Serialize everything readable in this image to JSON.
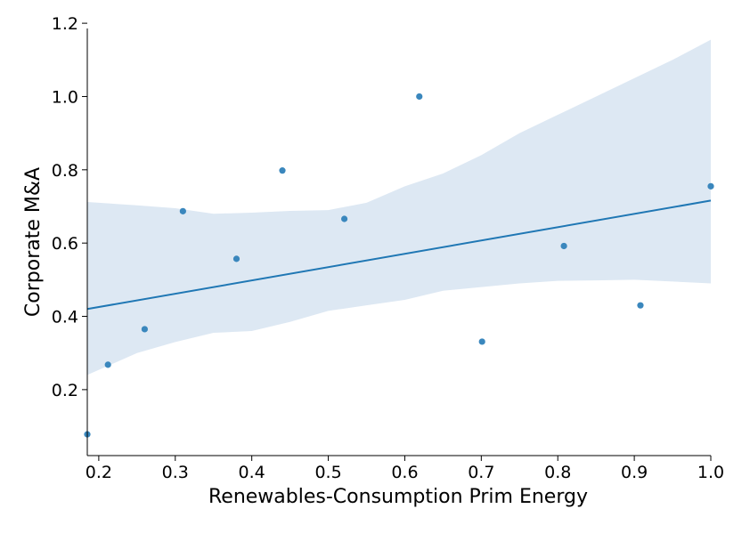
{
  "chart_data": {
    "type": "scatter",
    "title": "",
    "xlabel": "Renewables-Consumption Prim Energy",
    "ylabel": "Corporate M&A",
    "xlim": [
      0.185,
      1.0
    ],
    "ylim": [
      0.02,
      1.21
    ],
    "xticks": [
      0.2,
      0.3,
      0.4,
      0.5,
      0.6,
      0.7,
      0.8,
      0.9,
      1.0
    ],
    "xtick_labels": [
      "0.2",
      "0.3",
      "0.4",
      "0.5",
      "0.6",
      "0.7",
      "0.8",
      "0.9",
      "1.0"
    ],
    "yticks": [
      0.2,
      0.4,
      0.6,
      0.8,
      1.0,
      1.2
    ],
    "ytick_labels": [
      "0.2",
      "0.4",
      "0.6",
      "0.8",
      "1.0",
      "1.2"
    ],
    "grid": false,
    "points": [
      {
        "x": 0.185,
        "y": 0.078
      },
      {
        "x": 0.212,
        "y": 0.268
      },
      {
        "x": 0.26,
        "y": 0.365
      },
      {
        "x": 0.31,
        "y": 0.687
      },
      {
        "x": 0.38,
        "y": 0.557
      },
      {
        "x": 0.44,
        "y": 0.798
      },
      {
        "x": 0.521,
        "y": 0.666
      },
      {
        "x": 0.619,
        "y": 1.0
      },
      {
        "x": 0.701,
        "y": 0.331
      },
      {
        "x": 0.808,
        "y": 0.592
      },
      {
        "x": 0.908,
        "y": 0.43
      },
      {
        "x": 1.0,
        "y": 0.755
      }
    ],
    "regression_line": [
      {
        "x": 0.185,
        "y": 0.42
      },
      {
        "x": 1.0,
        "y": 0.716
      }
    ],
    "confidence_band": {
      "x": [
        0.185,
        0.25,
        0.3,
        0.35,
        0.4,
        0.45,
        0.5,
        0.55,
        0.6,
        0.65,
        0.7,
        0.75,
        0.8,
        0.85,
        0.9,
        0.95,
        1.0
      ],
      "upper": [
        0.712,
        0.703,
        0.695,
        0.68,
        0.683,
        0.688,
        0.69,
        0.71,
        0.755,
        0.79,
        0.84,
        0.9,
        0.95,
        1.0,
        1.05,
        1.1,
        1.155
      ],
      "lower": [
        0.24,
        0.3,
        0.33,
        0.355,
        0.36,
        0.385,
        0.415,
        0.43,
        0.445,
        0.47,
        0.48,
        0.49,
        0.497,
        0.498,
        0.5,
        0.495,
        0.49
      ]
    },
    "colors": {
      "points": "#3a87bd",
      "line": "#1f77b4",
      "band": "#dde8f3",
      "axis": "#000000"
    }
  }
}
